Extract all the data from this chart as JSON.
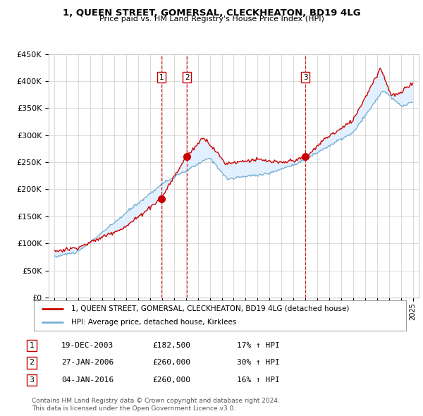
{
  "title": "1, QUEEN STREET, GOMERSAL, CLECKHEATON, BD19 4LG",
  "subtitle": "Price paid vs. HM Land Registry's House Price Index (HPI)",
  "ylabel_ticks": [
    "£0",
    "£50K",
    "£100K",
    "£150K",
    "£200K",
    "£250K",
    "£300K",
    "£350K",
    "£400K",
    "£450K"
  ],
  "ylim": [
    0,
    450000
  ],
  "xlim_start": 1994.5,
  "xlim_end": 2025.5,
  "sales": [
    {
      "label": "1",
      "date": "19-DEC-2003",
      "year": 2003.96,
      "price": 182500,
      "pct": "17%",
      "dir": "↑"
    },
    {
      "label": "2",
      "date": "27-JAN-2006",
      "year": 2006.08,
      "price": 260000,
      "pct": "30%",
      "dir": "↑"
    },
    {
      "label": "3",
      "date": "04-JAN-2016",
      "year": 2016.01,
      "price": 260000,
      "pct": "16%",
      "dir": "↑"
    }
  ],
  "legend_property": "1, QUEEN STREET, GOMERSAL, CLECKHEATON, BD19 4LG (detached house)",
  "legend_hpi": "HPI: Average price, detached house, Kirklees",
  "footer1": "Contains HM Land Registry data © Crown copyright and database right 2024.",
  "footer2": "This data is licensed under the Open Government Licence v3.0.",
  "property_color": "#cc0000",
  "hpi_color": "#7ab0d4",
  "shade_color": "#ddeeff",
  "background_color": "#ffffff",
  "grid_color": "#cccccc",
  "table_rows": [
    [
      "1",
      "19-DEC-2003",
      "£182,500",
      "17% ↑ HPI"
    ],
    [
      "2",
      "27-JAN-2006",
      "£260,000",
      "30% ↑ HPI"
    ],
    [
      "3",
      "04-JAN-2016",
      "£260,000",
      "16% ↑ HPI"
    ]
  ]
}
